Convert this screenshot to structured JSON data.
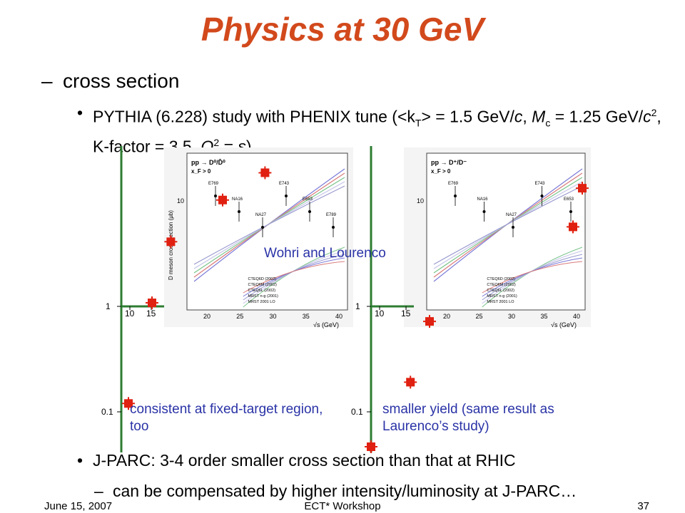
{
  "slide": {
    "title": "Physics at 30 GeV",
    "subtitle_dash": "–",
    "subtitle": "cross section",
    "bullet_symbol": "•",
    "bullet1_parts": {
      "a": "PYTHIA (6.228) study with PHENIX tune (<k",
      "a_sub": "T",
      "b": "> = 1.5 GeV/",
      "c_italic": "c",
      "d": ", ",
      "e_italic": "M",
      "e_sub": "c",
      "f": " = 1.25 GeV/",
      "g_italic": "c",
      "g_sup": "2",
      "h": ", K-factor = 3.5, ",
      "i_italic": "Q",
      "i_sup": "2",
      "j": " = ",
      "k_italic": "s",
      "l": ")"
    },
    "bullet2": "J-PARC: 3-4 order smaller cross section than that at RHIC",
    "subbullet2": "can be compensated by higher intensity/luminosity at J-PARC…",
    "attribution": "Wohri and Lourenco",
    "note_left": "consistent at fixed-target region, too",
    "note_right": "smaller yield (same result as Laurenco’s study)",
    "footer": {
      "date": "June 15, 2007",
      "center": "ECT* Workshop",
      "page": "37"
    },
    "colors": {
      "title": "#d2491c",
      "marker": "#e02010",
      "note": "#2a33a6"
    }
  },
  "chart_data": [
    {
      "type": "scatter",
      "x": [
        10,
        15,
        19,
        30,
        39
      ],
      "y": [
        0.12,
        1.08,
        4.1,
        10.2,
        18.5
      ],
      "xticks": [
        "10",
        "15"
      ],
      "yticks": [
        "1",
        "0.1"
      ],
      "ylim_log": [
        0.07,
        30
      ],
      "inset": {
        "title": "pp → D⁰/D̄⁰",
        "subtitle": "x_F > 0",
        "ylabel": "D meson cross-section (μb)",
        "xlabel": "√s (GeV)",
        "xticks": [
          "20",
          "25",
          "30",
          "35",
          "40"
        ],
        "ytick": "10",
        "legend": [
          "CTEQ6D (2002)",
          "CTEQ6M (2002)",
          "CTEQ6L (2002)",
          "MRST n-g (2001)",
          "MRST 2001 LO"
        ],
        "experiments": [
          "E769",
          "NA16",
          "NA27",
          "E743",
          "E653",
          "E789"
        ]
      }
    },
    {
      "type": "scatter",
      "x": [
        13,
        15,
        30,
        39
      ],
      "y": [
        0.28,
        0.8,
        4.1,
        8.0
      ],
      "extra_y_offscale": [
        0.045
      ],
      "xticks": [
        "10",
        "15"
      ],
      "yticks": [
        "1",
        "0.1"
      ],
      "ylim_log": [
        0.05,
        30
      ],
      "inset": {
        "title": "pp → D⁺/D⁻",
        "subtitle": "x_F > 0",
        "xlabel": "√s (GeV)",
        "xticks": [
          "20",
          "25",
          "30",
          "35",
          "40"
        ],
        "ytick": "10",
        "legend": [
          "CTEQ6D (2002)",
          "CTEQ6M (2002)",
          "CTEQ6L (2002)",
          "MRST n-g (2001)",
          "MRST 2001 LO"
        ],
        "experiments": [
          "E769",
          "NA16",
          "NA27",
          "E743",
          "E653"
        ]
      }
    }
  ]
}
